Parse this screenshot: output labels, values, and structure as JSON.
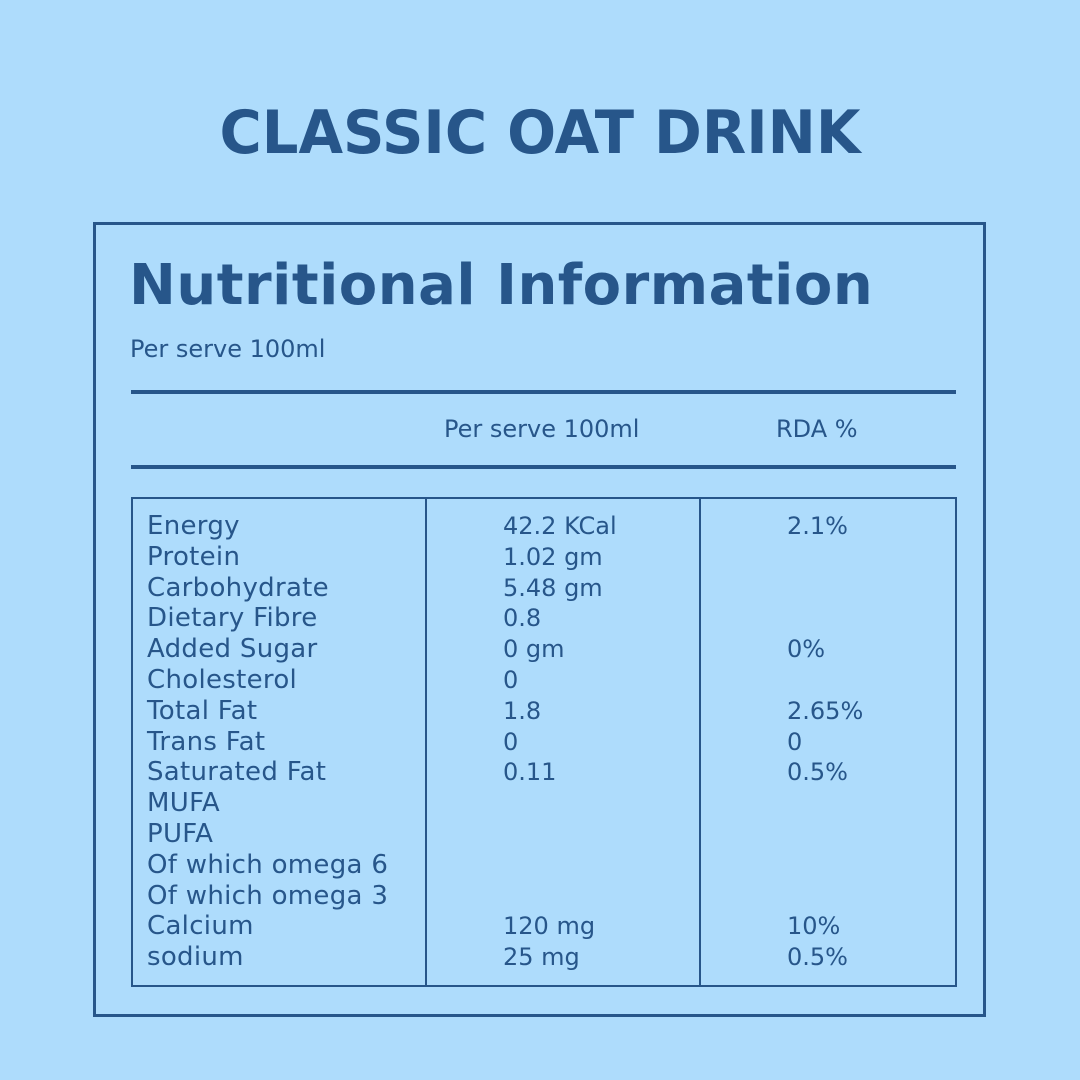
{
  "title": "CLASSIC OAT DRINK",
  "colors": {
    "background": "#AEDCFC",
    "primary": "#27568A"
  },
  "card": {
    "heading": "Nutritional Information",
    "subheading": "Per serve 100ml",
    "columns": {
      "serve": "Per serve 100ml",
      "rda": "RDA %"
    }
  },
  "rows": [
    {
      "nutrient": "Energy",
      "per_serve": "42.2 KCal",
      "rda": "2.1%"
    },
    {
      "nutrient": "Protein",
      "per_serve": "1.02 gm",
      "rda": ""
    },
    {
      "nutrient": "Carbohydrate",
      "per_serve": "5.48 gm",
      "rda": ""
    },
    {
      "nutrient": "Dietary Fibre",
      "per_serve": "0.8",
      "rda": ""
    },
    {
      "nutrient": "Added Sugar",
      "per_serve": "0 gm",
      "rda": "0%"
    },
    {
      "nutrient": "Cholesterol",
      "per_serve": "0",
      "rda": ""
    },
    {
      "nutrient": "Total Fat",
      "per_serve": "1.8",
      "rda": "2.65%"
    },
    {
      "nutrient": "Trans Fat",
      "per_serve": "0",
      "rda": "0"
    },
    {
      "nutrient": "Saturated Fat",
      "per_serve": "0.11",
      "rda": "0.5%"
    },
    {
      "nutrient": "MUFA",
      "per_serve": "",
      "rda": ""
    },
    {
      "nutrient": "PUFA",
      "per_serve": "",
      "rda": ""
    },
    {
      "nutrient": "Of which omega 6",
      "per_serve": "",
      "rda": ""
    },
    {
      "nutrient": "Of which omega 3",
      "per_serve": "",
      "rda": ""
    },
    {
      "nutrient": "Calcium",
      "per_serve": "120 mg",
      "rda": "10%"
    },
    {
      "nutrient": "sodium",
      "per_serve": "25 mg",
      "rda": "0.5%"
    }
  ]
}
